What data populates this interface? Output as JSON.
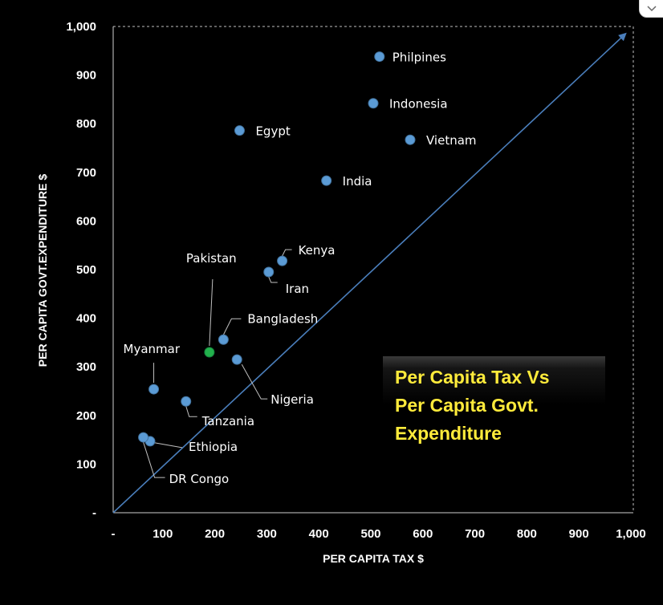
{
  "chart_data": {
    "type": "scatter",
    "xlabel": "PER CAPITA TAX $",
    "ylabel": "PER CAPITA GOVT.EXPENDITURE $",
    "xlim": [
      0,
      1000
    ],
    "ylim": [
      0,
      1000
    ],
    "x_ticks": [
      "-",
      "100",
      "200",
      "300",
      "400",
      "500",
      "600",
      "700",
      "800",
      "900",
      "1,000"
    ],
    "y_ticks": [
      "-",
      "100",
      "200",
      "300",
      "400",
      "500",
      "600",
      "700",
      "800",
      "900",
      "1,000"
    ],
    "reference_line": "y = x",
    "annotation": [
      "Per Capita Tax Vs",
      "Per Capita Govt.",
      "Expenditure"
    ],
    "colors": {
      "background": "#000000",
      "point": "#5b9bd5",
      "highlight": "#22b14c",
      "highlight_label": "#1fa645",
      "diagonal": "#4a7ebb",
      "annotation_text": "#ffeb3b"
    },
    "points": [
      {
        "label": "Philpines",
        "x": 512,
        "y": 938
      },
      {
        "label": "Indonesia",
        "x": 500,
        "y": 842
      },
      {
        "label": "Egypt",
        "x": 243,
        "y": 786
      },
      {
        "label": "Vietnam",
        "x": 571,
        "y": 767
      },
      {
        "label": "India",
        "x": 410,
        "y": 683
      },
      {
        "label": "Kenya",
        "x": 325,
        "y": 518
      },
      {
        "label": "Iran",
        "x": 299,
        "y": 495
      },
      {
        "label": "Pakistan",
        "x": 185,
        "y": 330,
        "highlight": true
      },
      {
        "label": "Bangladesh",
        "x": 212,
        "y": 356
      },
      {
        "label": "Nigeria",
        "x": 238,
        "y": 315
      },
      {
        "label": "Myanmar",
        "x": 78,
        "y": 254
      },
      {
        "label": "Tanzania",
        "x": 140,
        "y": 229
      },
      {
        "label": "Ethiopia",
        "x": 71,
        "y": 147
      },
      {
        "label": "DR Congo",
        "x": 58,
        "y": 155
      }
    ]
  },
  "ui": {
    "expand_icon": "chevron-down-icon"
  }
}
